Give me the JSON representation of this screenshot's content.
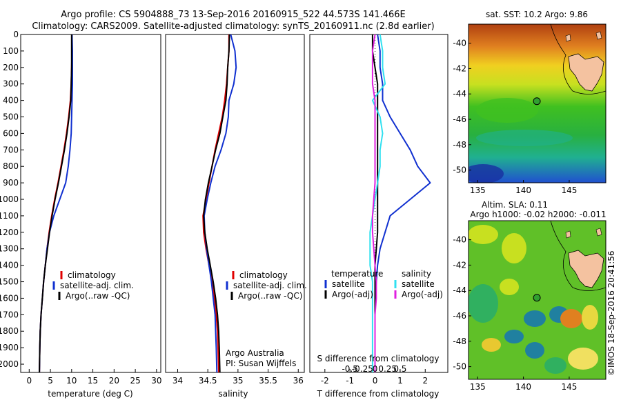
{
  "header": {
    "title_line1": "Argo profile: CS 5904888_73 13-Sep-2016 20160915_522 44.573S 141.466E",
    "title_line2": "Climatology: CARS2009. Satellite-adjusted climatology: synTS_20160911.nc (2.8d earlier)"
  },
  "credits": {
    "agency": "Argo Australia",
    "pi": "PI: Susan Wijffels",
    "stamp": "©IMOS 18-Sep-2016 20:41:56"
  },
  "colors": {
    "climatology": "#e00000",
    "satellite": "#1030d0",
    "argo": "#000000",
    "salinity_satellite": "#30e0f0",
    "salinity_argo": "#e020e0"
  },
  "chart_data": [
    {
      "id": "temperature",
      "type": "line",
      "xlabel": "temperature (deg C)",
      "xlim": [
        -2,
        31
      ],
      "xticks": [
        0,
        5,
        10,
        15,
        20,
        25,
        30
      ],
      "xtick_labels": [
        "0",
        "5",
        "10",
        "15",
        "20",
        "25",
        "30"
      ],
      "ylim": [
        0,
        2050
      ],
      "yticks": [
        0,
        100,
        200,
        300,
        400,
        500,
        600,
        700,
        800,
        900,
        1000,
        1100,
        1200,
        1300,
        1400,
        1500,
        1600,
        1700,
        1800,
        1900,
        2000
      ],
      "ytick_labels": [
        "0",
        "100",
        "200",
        "300",
        "400",
        "500",
        "600",
        "700",
        "800",
        "900",
        "1000",
        "1100",
        "1200",
        "1300",
        "1400",
        "1500",
        "1600",
        "1700",
        "1800",
        "1900",
        "2000"
      ],
      "y_reversed": true,
      "legend": {
        "position": "lower-right",
        "entries": [
          "climatology",
          "satellite-adj. clim.",
          "Argo(..raw -QC)"
        ]
      },
      "series": [
        {
          "name": "climatology",
          "color": "#e00000",
          "x": [
            10.1,
            10.1,
            10.0,
            9.9,
            9.7,
            9.3,
            8.8,
            8.2,
            7.5,
            6.8,
            6.0,
            5.3,
            4.7,
            4.2,
            3.8,
            3.4,
            3.1,
            2.8,
            2.6,
            2.5,
            2.4
          ],
          "y": [
            0,
            100,
            200,
            300,
            400,
            500,
            600,
            700,
            800,
            900,
            1000,
            1100,
            1200,
            1300,
            1400,
            1500,
            1600,
            1700,
            1800,
            1900,
            2050
          ]
        },
        {
          "name": "satellite-adj. clim.",
          "color": "#1030d0",
          "x": [
            10.1,
            10.2,
            10.2,
            10.2,
            10.1,
            10.0,
            9.9,
            9.6,
            9.2,
            8.6,
            7.2,
            5.8,
            4.8,
            4.2,
            3.8,
            3.4,
            3.1,
            2.8,
            2.6,
            2.5,
            2.4
          ],
          "y": [
            0,
            100,
            200,
            300,
            400,
            500,
            600,
            700,
            800,
            900,
            1000,
            1100,
            1200,
            1300,
            1400,
            1500,
            1600,
            1700,
            1800,
            1900,
            2050
          ]
        },
        {
          "name": "Argo(..raw -QC)",
          "color": "#000000",
          "x": [
            10.0,
            10.0,
            10.0,
            9.9,
            9.8,
            9.4,
            8.9,
            8.3,
            7.6,
            6.9,
            6.1,
            5.4,
            4.8,
            4.3,
            3.8,
            3.4,
            3.1,
            2.8,
            2.6,
            2.5,
            2.4
          ],
          "y": [
            0,
            100,
            200,
            300,
            400,
            500,
            600,
            700,
            800,
            900,
            1000,
            1100,
            1200,
            1300,
            1400,
            1500,
            1600,
            1700,
            1800,
            1900,
            2050
          ]
        }
      ]
    },
    {
      "id": "salinity",
      "type": "line",
      "xlabel": "salinity",
      "xlim": [
        33.8,
        36.1
      ],
      "xticks": [
        34,
        34.5,
        35,
        35.5,
        36
      ],
      "xtick_labels": [
        "34",
        "34.5",
        "35",
        "35.5",
        "36"
      ],
      "ylim": [
        0,
        2050
      ],
      "y_reversed": true,
      "legend": {
        "position": "lower-right",
        "entries": [
          "climatology",
          "satellite-adj. clim.",
          "Argo(..raw -QC)"
        ]
      },
      "series": [
        {
          "name": "climatology",
          "color": "#e00000",
          "x": [
            34.85,
            34.85,
            34.83,
            34.81,
            34.78,
            34.74,
            34.68,
            34.62,
            34.57,
            34.52,
            34.47,
            34.42,
            34.43,
            34.47,
            34.52,
            34.57,
            34.61,
            34.64,
            34.66,
            34.67,
            34.68
          ],
          "y": [
            0,
            100,
            200,
            300,
            400,
            500,
            600,
            700,
            800,
            900,
            1000,
            1100,
            1200,
            1300,
            1400,
            1500,
            1600,
            1700,
            1800,
            1900,
            2050
          ]
        },
        {
          "name": "satellite-adj. clim.",
          "color": "#1030d0",
          "x": [
            34.88,
            34.95,
            34.97,
            34.93,
            34.85,
            34.84,
            34.8,
            34.72,
            34.62,
            34.55,
            34.49,
            34.44,
            34.45,
            34.48,
            34.52,
            34.56,
            34.59,
            34.62,
            34.63,
            34.64,
            34.65
          ],
          "y": [
            0,
            100,
            200,
            300,
            400,
            500,
            600,
            700,
            800,
            900,
            1000,
            1100,
            1200,
            1300,
            1400,
            1500,
            1600,
            1700,
            1800,
            1900,
            2050
          ]
        },
        {
          "name": "Argo(..raw -QC)",
          "color": "#000000",
          "x": [
            34.86,
            34.85,
            34.83,
            34.82,
            34.8,
            34.75,
            34.7,
            34.63,
            34.57,
            34.51,
            34.46,
            34.43,
            34.45,
            34.49,
            34.54,
            34.59,
            34.63,
            34.66,
            34.68,
            34.69,
            34.7
          ],
          "y": [
            0,
            100,
            200,
            300,
            400,
            500,
            600,
            700,
            800,
            900,
            1000,
            1100,
            1200,
            1300,
            1400,
            1500,
            1600,
            1700,
            1800,
            1900,
            2050
          ]
        }
      ]
    },
    {
      "id": "difference",
      "type": "line",
      "xlabel": "T difference from climatology",
      "xlabel_top": "S difference from climatology",
      "xlim": [
        -2.6,
        2.9
      ],
      "xticks": [
        -2,
        -1,
        0,
        1,
        2
      ],
      "xtick_labels": [
        "-2",
        "-1",
        "0",
        "1",
        "2"
      ],
      "xticks_top": [
        -1,
        -0.5,
        0,
        0.5,
        1
      ],
      "xticks_top_labels": [
        "-0.5",
        "-0.25",
        "0",
        "0.25",
        "0.5"
      ],
      "ylim": [
        0,
        2050
      ],
      "y_reversed": true,
      "legend": {
        "position": "lower-center",
        "temperature_title": "temperature",
        "salinity_title": "salinity",
        "temperature_entries": [
          "satellite",
          "Argo(-adj)"
        ],
        "salinity_entries": [
          "satellite",
          "Argo(-adj)"
        ]
      },
      "series": [
        {
          "name": "temperature satellite",
          "color": "#1030d0",
          "x": [
            0.1,
            0.2,
            0.2,
            0.3,
            0.3,
            0.6,
            1.0,
            1.4,
            1.7,
            2.2,
            1.4,
            0.6,
            0.4,
            0.2,
            0.1,
            0.05,
            0.0,
            0.0,
            0.0,
            0.0,
            0.0
          ],
          "y": [
            0,
            100,
            200,
            300,
            400,
            500,
            600,
            700,
            800,
            900,
            1000,
            1100,
            1200,
            1300,
            1400,
            1500,
            1600,
            1700,
            1800,
            1900,
            2050
          ]
        },
        {
          "name": "temperature Argo(-adj)",
          "color": "#000000",
          "x": [
            -0.1,
            -0.1,
            0.0,
            0.1,
            0.1,
            0.1,
            0.1,
            0.1,
            0.1,
            0.1,
            0.1,
            0.1,
            0.1,
            0.05,
            0.0,
            0.0,
            0.0,
            0.0,
            0.0,
            0.0,
            0.0
          ],
          "y": [
            0,
            100,
            200,
            300,
            400,
            500,
            600,
            700,
            800,
            900,
            1000,
            1100,
            1200,
            1300,
            1400,
            1500,
            1600,
            1700,
            1800,
            1900,
            2050
          ]
        },
        {
          "name": "salinity satellite",
          "color": "#30e0f0",
          "x": [
            0.2,
            0.3,
            0.3,
            0.4,
            -0.1,
            0.2,
            0.3,
            0.2,
            0.2,
            0.1,
            0.0,
            -0.1,
            -0.2,
            -0.2,
            -0.2,
            -0.1,
            -0.1,
            -0.1,
            -0.1,
            -0.1,
            -0.1
          ],
          "y": [
            0,
            100,
            200,
            300,
            400,
            500,
            600,
            700,
            800,
            900,
            1000,
            1100,
            1200,
            1300,
            1400,
            1500,
            1600,
            1700,
            1800,
            1900,
            2050
          ]
        },
        {
          "name": "salinity Argo(-adj)",
          "color": "#e020e0",
          "x": [
            0.0,
            -0.1,
            -0.1,
            -0.1,
            0.0,
            0.0,
            0.0,
            0.0,
            0.0,
            0.0,
            -0.05,
            -0.1,
            -0.1,
            -0.05,
            0.0,
            0.05,
            0.05,
            0.0,
            0.0,
            0.0,
            0.0
          ],
          "y": [
            0,
            100,
            200,
            300,
            400,
            500,
            600,
            700,
            800,
            900,
            1000,
            1100,
            1200,
            1300,
            1400,
            1500,
            1600,
            1700,
            1800,
            1900,
            2050
          ]
        }
      ]
    },
    {
      "id": "sst_map",
      "type": "heatmap",
      "title": "sat. SST: 10.2 Argo: 9.86",
      "xlim": [
        134,
        149
      ],
      "ylim": [
        -51,
        -38.5
      ],
      "xticks": [
        135,
        140,
        145
      ],
      "xtick_labels": [
        "135",
        "140",
        "145"
      ],
      "yticks": [
        -40,
        -42,
        -44,
        -46,
        -48,
        -50
      ],
      "ytick_labels": [
        "-40",
        "-42",
        "-44",
        "-46",
        "-48",
        "-50"
      ],
      "profile_location": {
        "lon": 141.466,
        "lat": -44.573
      }
    },
    {
      "id": "sla_map",
      "type": "heatmap",
      "title": "Altim. SLA: 0.11",
      "subtitle": "Argo h1000: -0.02 h2000: -0.011",
      "xlim": [
        134,
        149
      ],
      "ylim": [
        -51,
        -38.5
      ],
      "xticks": [
        135,
        140,
        145
      ],
      "xtick_labels": [
        "135",
        "140",
        "145"
      ],
      "yticks": [
        -40,
        -42,
        -44,
        -46,
        -48,
        -50
      ],
      "ytick_labels": [
        "-40",
        "-42",
        "-44",
        "-46",
        "-48",
        "-50"
      ],
      "profile_location": {
        "lon": 141.466,
        "lat": -44.573
      }
    }
  ]
}
